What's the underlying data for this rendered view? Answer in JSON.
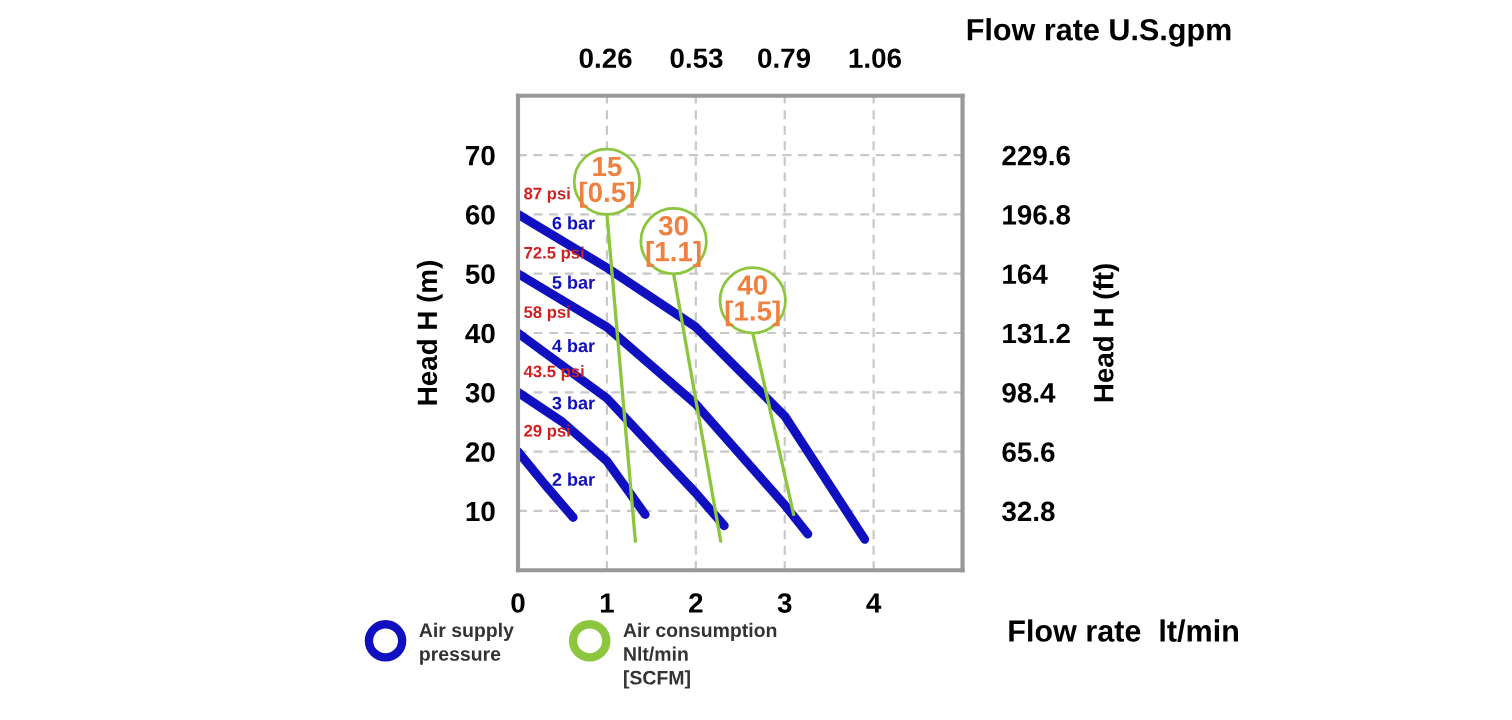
{
  "chart_data": {
    "type": "line",
    "xlabel": "Flow rate  lt/min",
    "x2label": "Flow rate U.S.gpm",
    "ylabel": "Head H (m)",
    "y2label": "Head H (ft)",
    "xlim": [
      0,
      5
    ],
    "xticks": [
      0,
      1,
      2,
      3,
      4
    ],
    "ylim": [
      0,
      80
    ],
    "yticks": [
      10,
      20,
      30,
      40,
      50,
      60,
      70
    ],
    "x2lim": [
      0,
      1.32
    ],
    "x2ticks": [
      0.26,
      0.53,
      0.79,
      1.06
    ],
    "y2lim": [
      0,
      262.4
    ],
    "y2ticks": [
      32.8,
      65.6,
      98.4,
      131.2,
      164,
      196.8,
      229.6
    ],
    "grid": true,
    "marker": "none",
    "series": [
      {
        "name": "2 bar",
        "color": "#1010c0",
        "x": [
          0,
          0.3,
          0.62
        ],
        "values": [
          20,
          14.5,
          8.9
        ]
      },
      {
        "name": "3 bar",
        "color": "#1010c0",
        "x": [
          0,
          0.5,
          1,
          1.43
        ],
        "values": [
          30,
          25,
          18.4,
          9.4
        ]
      },
      {
        "name": "4 bar",
        "color": "#1010c0",
        "x": [
          0,
          1,
          2,
          2.32
        ],
        "values": [
          40,
          29,
          13,
          7.5
        ]
      },
      {
        "name": "5 bar",
        "color": "#1010c0",
        "x": [
          0,
          1,
          2,
          3,
          3.26
        ],
        "values": [
          50,
          41,
          28,
          11,
          6.1
        ]
      },
      {
        "name": "6 bar",
        "color": "#1010c0",
        "x": [
          0,
          1,
          2,
          3,
          3.9
        ],
        "values": [
          60,
          51,
          41,
          26,
          5.2
        ]
      },
      {
        "name": "15\n[0.5]",
        "color": "#8cc63f",
        "x": [
          1.0,
          1.32
        ],
        "values": [
          60,
          4.9
        ]
      },
      {
        "name": "30\n[1.1]",
        "color": "#8cc63f",
        "x": [
          1.75,
          2.28
        ],
        "values": [
          50,
          4.9
        ]
      },
      {
        "name": "40\n[1.5]",
        "color": "#8cc63f",
        "x": [
          2.64,
          3.1
        ],
        "values": [
          40,
          9.4
        ]
      }
    ],
    "annotations": [
      "29 psi",
      "43.5 psi",
      "58 psi",
      "72.5 psi",
      "87 psi",
      "Air supply\npressure",
      "Air consumption\nNlt/min\n[SCFM]"
    ]
  }
}
